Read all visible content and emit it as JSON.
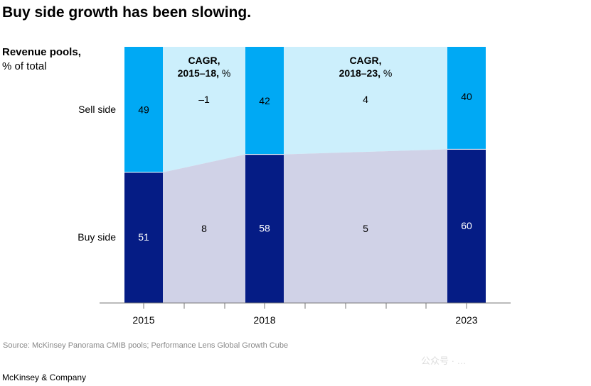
{
  "title": "Buy side growth has been slowing.",
  "subtitle_bold": "Revenue pools,",
  "subtitle_rest": "% of total",
  "source": "Source: McKinsey Panorama CMIB pools; Performance Lens Global Growth Cube",
  "footer": "McKinsey & Company",
  "watermark": "公众号 · …",
  "colors": {
    "sell": "#00A9F4",
    "buy": "#051C85",
    "sell_band": "#CCEFFC",
    "buy_band": "#D0D2E7"
  },
  "chart_data": {
    "type": "stacked-bar",
    "categories": [
      "2015",
      "2018",
      "2023"
    ],
    "series": [
      {
        "name": "Sell side",
        "values": [
          49,
          42,
          40
        ],
        "labels": [
          "49",
          "42",
          "40"
        ]
      },
      {
        "name": "Buy side",
        "values": [
          51,
          58,
          60
        ],
        "labels": [
          "51",
          "58",
          "60"
        ]
      }
    ],
    "cagr": [
      {
        "heading": "CAGR,",
        "period": "2015–18,",
        "unit": "%",
        "sell": "–1",
        "buy": "8"
      },
      {
        "heading": "CAGR,",
        "period": "2018–23,",
        "unit": "%",
        "sell": "4",
        "buy": "5"
      }
    ],
    "ylim": [
      0,
      100
    ]
  }
}
